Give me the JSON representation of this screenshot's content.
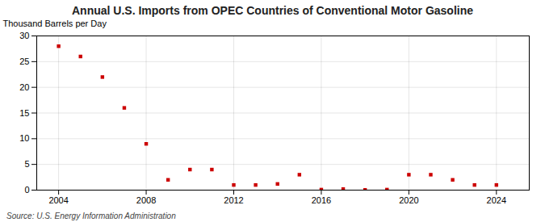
{
  "chart_data": {
    "type": "scatter",
    "title": "Annual U.S. Imports from OPEC Countries of Conventional Motor Gasoline",
    "ylabel": "Thousand Barrels per Day",
    "annotation": "Source: U.S. Energy Information Administration",
    "x": [
      2004,
      2005,
      2006,
      2007,
      2008,
      2009,
      2010,
      2011,
      2012,
      2013,
      2014,
      2015,
      2016,
      2017,
      2018,
      2019,
      2020,
      2021,
      2022,
      2023,
      2024
    ],
    "values": [
      28,
      26,
      22,
      16,
      9,
      2,
      4,
      4,
      1,
      1,
      1.2,
      3,
      0.1,
      0.2,
      0.05,
      0.1,
      3,
      3,
      2,
      1,
      1
    ],
    "color": "#cc0000",
    "marker": "square",
    "xlim": [
      2003,
      2025.5
    ],
    "ylim": [
      0,
      30
    ],
    "xticks": [
      2004,
      2008,
      2012,
      2016,
      2020,
      2024
    ],
    "yticks": [
      0,
      5,
      10,
      15,
      20,
      25,
      30
    ],
    "grid": true
  }
}
